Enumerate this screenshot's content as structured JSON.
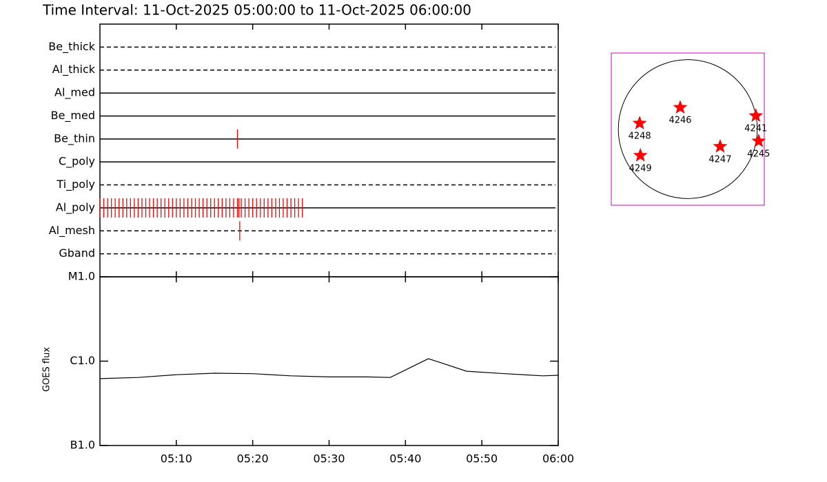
{
  "chart_data": [
    {
      "type": "timeline",
      "title": "Time Interval: 11-Oct-2025 05:00:00 to 11-Oct-2025 06:00:00",
      "categories": [
        "Be_thick",
        "Al_thick",
        "Al_med",
        "Be_med",
        "Be_thin",
        "C_poly",
        "Ti_poly",
        "Al_poly",
        "Al_mesh",
        "Gband"
      ],
      "styles": [
        "dashed",
        "dashed",
        "solid",
        "solid",
        "solid",
        "solid",
        "dashed",
        "solid",
        "dashed",
        "dashed"
      ],
      "color": "#ff0000",
      "events": [
        [],
        [],
        [],
        [],
        [
          18.0
        ],
        [],
        [],
        [
          0,
          0.5,
          1,
          1.5,
          2,
          2.5,
          3,
          3.5,
          4,
          4.5,
          5,
          5.5,
          6,
          6.5,
          7,
          7.5,
          8,
          8.5,
          9,
          9.5,
          10,
          10.5,
          11,
          11.5,
          12,
          12.5,
          13,
          13.5,
          14,
          14.5,
          15,
          15.5,
          16,
          16.5,
          17,
          17.5,
          18,
          18.2,
          18.5,
          19,
          19.5,
          20,
          20.5,
          21,
          21.5,
          22,
          22.5,
          23,
          23.5,
          24,
          24.5,
          25,
          25.5,
          26,
          26.5
        ],
        [
          18.3
        ],
        []
      ]
    },
    {
      "type": "line",
      "ylabel": "GOES flux",
      "log": true,
      "color": "#000000",
      "xlim": [
        0,
        60
      ],
      "xticks": [
        {
          "value": 10,
          "label": "05:10"
        },
        {
          "value": 20,
          "label": "05:20"
        },
        {
          "value": 30,
          "label": "05:30"
        },
        {
          "value": 40,
          "label": "05:40"
        },
        {
          "value": 50,
          "label": "05:50"
        },
        {
          "value": 60,
          "label": "06:00"
        }
      ],
      "ylim": [
        1e-07,
        1e-05
      ],
      "yticks": [
        {
          "value": 1e-05,
          "label": "M1.0"
        },
        {
          "value": 1e-06,
          "label": "C1.0"
        },
        {
          "value": 1e-07,
          "label": "B1.0"
        }
      ],
      "x": [
        0,
        5,
        10,
        15,
        20,
        25,
        30,
        35,
        38,
        43,
        48,
        53,
        58,
        60
      ],
      "values": [
        6.2e-07,
        6.4e-07,
        6.9e-07,
        7.2e-07,
        7.1e-07,
        6.7e-07,
        6.5e-07,
        6.5e-07,
        6.4e-07,
        1.07e-06,
        7.6e-07,
        7.1e-07,
        6.7e-07,
        6.8e-07
      ]
    },
    {
      "type": "map",
      "color": "#ff0000",
      "frame_color": "#cc33cc",
      "xlim": [
        -1090,
        1090
      ],
      "ylim": [
        -1090,
        1090
      ],
      "disk_radius": 990,
      "labels": [
        "4246",
        "4241",
        "4248",
        "4245",
        "4247",
        "4249"
      ],
      "x": [
        -108,
        970,
        -686,
        1010,
        461,
        -676
      ],
      "y": [
        309,
        191,
        83,
        -172,
        -250,
        -378
      ]
    }
  ]
}
